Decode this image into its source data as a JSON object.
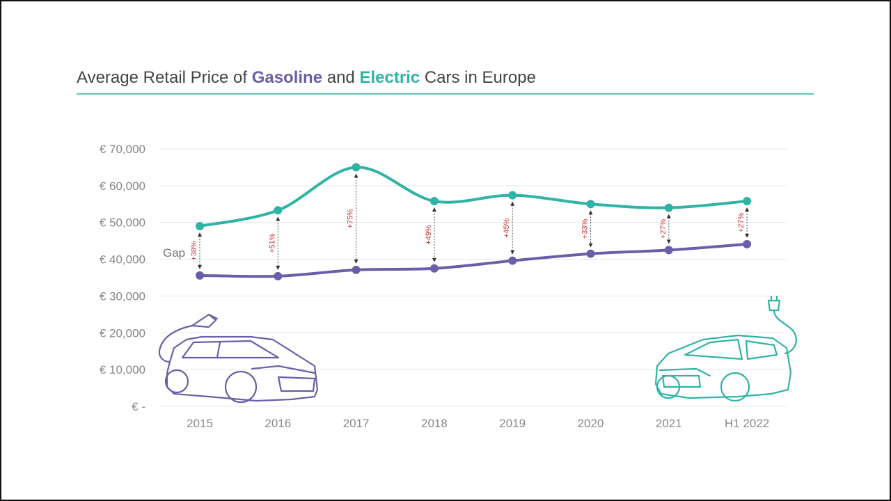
{
  "title": {
    "prefix": "Average Retail Price of ",
    "gasoline": "Gasoline",
    "middle": " and ",
    "electric": "Electric",
    "suffix": " Cars in Europe"
  },
  "colors": {
    "gasoline": "#6b5ea8",
    "electric": "#2fb3a4",
    "gap": "#c0393b",
    "grid": "#e6e6e6",
    "rule": "#5fc4bb"
  },
  "chart_data": {
    "type": "line",
    "title": "Average Retail Price of Gasoline and Electric Cars in Europe",
    "categories": [
      "2015",
      "2016",
      "2017",
      "2018",
      "2019",
      "2020",
      "2021",
      "H1 2022"
    ],
    "series": [
      {
        "name": "Electric",
        "values": [
          49000,
          53300,
          65000,
          55800,
          57400,
          55000,
          54000,
          55800
        ]
      },
      {
        "name": "Gasoline",
        "values": [
          35600,
          35400,
          37100,
          37500,
          39600,
          41500,
          42500,
          44100
        ]
      }
    ],
    "gap_label": "Gap",
    "gaps": [
      "+38%",
      "+51%",
      "+75%",
      "+49%",
      "+45%",
      "+33%",
      "+27%",
      "+27%"
    ],
    "y_ticks": [
      0,
      10000,
      20000,
      30000,
      40000,
      50000,
      60000,
      70000
    ],
    "y_tick_labels": [
      "€ -",
      "€ 10,000",
      "€ 20,000",
      "€ 30,000",
      "€ 40,000",
      "€ 50,000",
      "€ 60,000",
      "€ 70,000"
    ],
    "ylim": [
      0,
      70000
    ],
    "xlabel": "",
    "ylabel": "",
    "grid": true,
    "legend": "title"
  }
}
